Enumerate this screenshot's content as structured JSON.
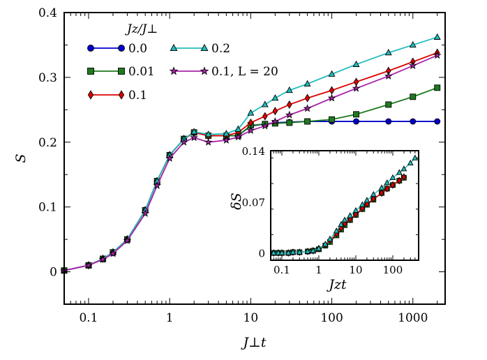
{
  "chart_data": {
    "type": "line",
    "xscale": "log",
    "xlabel": "J⊥t",
    "ylabel": "S",
    "xlim": [
      0.05,
      2500
    ],
    "ylim": [
      -0.05,
      0.4
    ],
    "xticks": [
      0.1,
      1,
      10,
      100,
      1000
    ],
    "xtick_labels": [
      "0.1",
      "1",
      "10",
      "100",
      "1000"
    ],
    "yticks": [
      0,
      0.1,
      0.2,
      0.3,
      0.4
    ],
    "ytick_labels": [
      "0",
      "0.1",
      "0.2",
      "0.3",
      "0.4"
    ],
    "legend_title": "Jz/J⊥",
    "legend_position": "top-left",
    "series": [
      {
        "name": "0.0",
        "color": "#0000cc",
        "marker": "circle",
        "x": [
          0.05,
          0.1,
          0.15,
          0.2,
          0.3,
          0.5,
          0.7,
          1,
          1.5,
          2,
          3,
          5,
          7,
          10,
          15,
          20,
          30,
          50,
          100,
          200,
          500,
          1000,
          2000
        ],
        "y": [
          0.002,
          0.01,
          0.02,
          0.03,
          0.05,
          0.095,
          0.14,
          0.18,
          0.205,
          0.215,
          0.21,
          0.21,
          0.21,
          0.225,
          0.228,
          0.23,
          0.231,
          0.232,
          0.232,
          0.232,
          0.232,
          0.232,
          0.232
        ]
      },
      {
        "name": "0.01",
        "color": "#1f7a1f",
        "marker": "square",
        "x": [
          0.05,
          0.1,
          0.15,
          0.2,
          0.3,
          0.5,
          0.7,
          1,
          1.5,
          2,
          3,
          5,
          7,
          10,
          15,
          20,
          30,
          50,
          100,
          200,
          500,
          1000,
          2000
        ],
        "y": [
          0.002,
          0.01,
          0.02,
          0.03,
          0.05,
          0.095,
          0.14,
          0.18,
          0.205,
          0.215,
          0.21,
          0.21,
          0.21,
          0.226,
          0.228,
          0.229,
          0.23,
          0.232,
          0.235,
          0.243,
          0.258,
          0.27,
          0.284
        ]
      },
      {
        "name": "0.1",
        "color": "#dd0000",
        "marker": "diamond",
        "x": [
          0.05,
          0.1,
          0.15,
          0.2,
          0.3,
          0.5,
          0.7,
          1,
          1.5,
          2,
          3,
          5,
          7,
          10,
          15,
          20,
          30,
          50,
          100,
          200,
          500,
          1000,
          2000
        ],
        "y": [
          0.002,
          0.01,
          0.02,
          0.03,
          0.05,
          0.095,
          0.14,
          0.18,
          0.205,
          0.215,
          0.21,
          0.21,
          0.215,
          0.23,
          0.24,
          0.248,
          0.258,
          0.268,
          0.28,
          0.293,
          0.31,
          0.324,
          0.338
        ]
      },
      {
        "name": "0.2",
        "color": "#22bbbb",
        "marker": "triangle",
        "x": [
          0.05,
          0.1,
          0.15,
          0.2,
          0.3,
          0.5,
          0.7,
          1,
          1.5,
          2,
          3,
          5,
          7,
          10,
          15,
          20,
          30,
          50,
          100,
          200,
          500,
          1000,
          2000
        ],
        "y": [
          0.002,
          0.01,
          0.02,
          0.03,
          0.05,
          0.095,
          0.14,
          0.18,
          0.205,
          0.216,
          0.212,
          0.213,
          0.22,
          0.245,
          0.258,
          0.268,
          0.28,
          0.29,
          0.305,
          0.32,
          0.338,
          0.35,
          0.362
        ]
      },
      {
        "name": "0.1, L = 20",
        "color": "#aa22aa",
        "marker": "star",
        "x": [
          0.05,
          0.1,
          0.15,
          0.2,
          0.3,
          0.5,
          0.7,
          1,
          1.5,
          2,
          3,
          5,
          7,
          10,
          15,
          20,
          30,
          50,
          100,
          200,
          500,
          1000,
          2000
        ],
        "y": [
          0.002,
          0.01,
          0.019,
          0.028,
          0.048,
          0.09,
          0.133,
          0.175,
          0.2,
          0.207,
          0.2,
          0.203,
          0.208,
          0.218,
          0.225,
          0.232,
          0.242,
          0.252,
          0.268,
          0.283,
          0.302,
          0.318,
          0.334
        ]
      }
    ],
    "inset": {
      "type": "line",
      "xscale": "log",
      "xlabel": "Jzt",
      "ylabel": "δS",
      "xlim": [
        0.05,
        500
      ],
      "ylim": [
        -0.01,
        0.14
      ],
      "xticks": [
        0.1,
        1,
        10,
        100
      ],
      "xtick_labels": [
        "0.1",
        "1",
        "10",
        "100"
      ],
      "yticks": [
        0,
        0.07,
        0.14
      ],
      "ytick_labels": [
        "0",
        "0.07",
        "0.14"
      ],
      "series": [
        {
          "name": "0.01",
          "color": "#1f7a1f",
          "marker": "square",
          "x": [
            0.06,
            0.08,
            0.1,
            0.15,
            0.2,
            0.3,
            0.5,
            0.7,
            1,
            1.5,
            2,
            3,
            4,
            5,
            7,
            10,
            15,
            20,
            30,
            50,
            70,
            100,
            150,
            200
          ],
          "y": [
            0,
            0,
            0,
            0,
            0.001,
            0.001,
            0.002,
            0.003,
            0.005,
            0.01,
            0.015,
            0.024,
            0.032,
            0.038,
            0.045,
            0.052,
            0.06,
            0.066,
            0.073,
            0.082,
            0.088,
            0.093,
            0.099,
            0.103
          ]
        },
        {
          "name": "0.1",
          "color": "#dd0000",
          "marker": "diamond",
          "x": [
            0.06,
            0.08,
            0.1,
            0.15,
            0.2,
            0.3,
            0.5,
            0.7,
            1,
            1.5,
            2,
            3,
            4,
            5,
            7,
            10,
            15,
            20,
            30,
            50,
            70,
            100,
            150,
            200
          ],
          "y": [
            0,
            0,
            0,
            0,
            0.001,
            0.001,
            0.002,
            0.003,
            0.006,
            0.011,
            0.017,
            0.026,
            0.034,
            0.04,
            0.046,
            0.053,
            0.061,
            0.067,
            0.074,
            0.082,
            0.088,
            0.093,
            0.099,
            0.104
          ]
        },
        {
          "name": "0.2",
          "color": "#22bbbb",
          "marker": "triangle",
          "x": [
            0.06,
            0.08,
            0.1,
            0.15,
            0.2,
            0.3,
            0.5,
            0.7,
            1,
            1.5,
            2,
            3,
            4,
            5,
            7,
            10,
            15,
            20,
            30,
            50,
            70,
            100,
            150,
            200,
            300,
            400
          ],
          "y": [
            0,
            0,
            0,
            0,
            0.001,
            0.001,
            0.002,
            0.003,
            0.006,
            0.012,
            0.019,
            0.03,
            0.039,
            0.045,
            0.051,
            0.058,
            0.066,
            0.072,
            0.08,
            0.089,
            0.096,
            0.103,
            0.11,
            0.115,
            0.123,
            0.13
          ]
        }
      ]
    }
  }
}
